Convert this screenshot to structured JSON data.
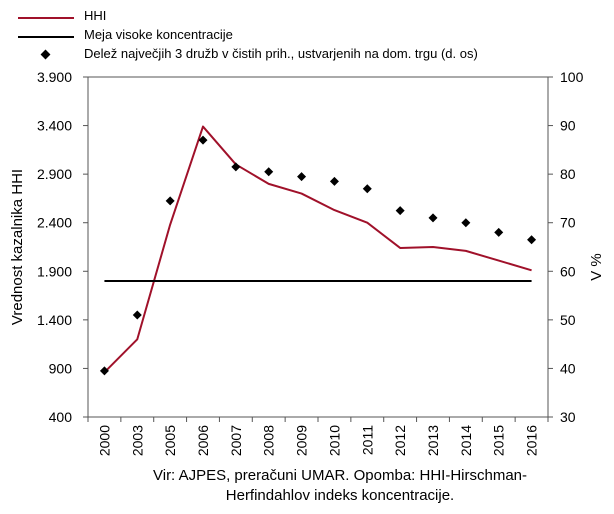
{
  "legend": {
    "items": [
      {
        "label": "HHI",
        "kind": "line",
        "color": "#a0112a"
      },
      {
        "label": "Meja visoke koncentracije",
        "kind": "line",
        "color": "#000000"
      },
      {
        "label": "Delež največjih 3 družb v čistih prih., ustvarjenih na dom. trgu (d. os)",
        "kind": "marker",
        "color": "#000000"
      }
    ]
  },
  "source_note": {
    "line1": "Vir: AJPES, preračuni UMAR. Opomba: HHI-Hirschman-",
    "line2": "Herfindahlov indeks koncentracije."
  },
  "chart_data": {
    "type": "line",
    "categories": [
      "2000",
      "2003",
      "2005",
      "2006",
      "2007",
      "2008",
      "2009",
      "2010",
      "2011",
      "2012",
      "2013",
      "2014",
      "2015",
      "2016"
    ],
    "ylabel": "Vrednost kazalnika HHI",
    "y2label": "V %",
    "ylim": [
      400,
      3900
    ],
    "y_ticks": [
      "3.900",
      "3.400",
      "2.900",
      "2.400",
      "1.900",
      "1.400",
      "900",
      "400"
    ],
    "y_tick_values": [
      3900,
      3400,
      2900,
      2400,
      1900,
      1400,
      900,
      400
    ],
    "y2lim": [
      30,
      100
    ],
    "y2_ticks": [
      "100",
      "90",
      "80",
      "70",
      "60",
      "50",
      "40",
      "30"
    ],
    "y2_tick_values": [
      100,
      90,
      80,
      70,
      60,
      50,
      40,
      30
    ],
    "grid": false,
    "legend_position": "top-left",
    "series": [
      {
        "name": "HHI",
        "axis": "left",
        "kind": "line",
        "color": "#a0112a",
        "values": [
          860,
          1200,
          2380,
          3390,
          3000,
          2800,
          2700,
          2530,
          2400,
          2140,
          2150,
          2110,
          2010,
          1910
        ]
      },
      {
        "name": "Meja visoke koncentracije",
        "axis": "left",
        "kind": "line",
        "color": "#000000",
        "values": [
          1800,
          1800,
          1800,
          1800,
          1800,
          1800,
          1800,
          1800,
          1800,
          1800,
          1800,
          1800,
          1800,
          1800
        ]
      },
      {
        "name": "Delež največjih 3 družb v čistih prih., ustvarjenih na dom. trgu (d. os)",
        "axis": "right",
        "kind": "scatter",
        "color": "#000000",
        "values": [
          39.5,
          51,
          74.5,
          87,
          81.5,
          80.5,
          79.5,
          78.5,
          77,
          72.5,
          71,
          70,
          68,
          66.5
        ]
      }
    ]
  }
}
